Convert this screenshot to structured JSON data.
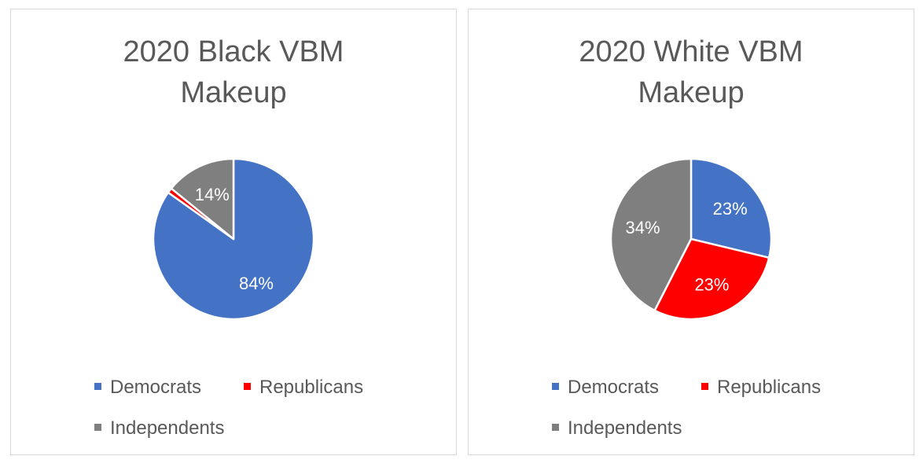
{
  "colors": {
    "democrats": "#4472c4",
    "republicans": "#ff0000",
    "independents": "#7f7f7f"
  },
  "legend": {
    "democrats": "Democrats",
    "republicans": "Republicans",
    "independents": "Independents"
  },
  "chart_data": [
    {
      "type": "pie",
      "title_line1": "2020 Black VBM",
      "title_line2": "Makeup",
      "categories": [
        "Democrats",
        "Republicans",
        "Independents"
      ],
      "values": [
        84,
        1,
        14
      ],
      "labels": [
        "84%",
        "",
        "14%"
      ],
      "legend_position": "bottom"
    },
    {
      "type": "pie",
      "title_line1": "2020 White VBM",
      "title_line2": "Makeup",
      "categories": [
        "Democrats",
        "Republicans",
        "Independents"
      ],
      "values": [
        23,
        23,
        34
      ],
      "labels": [
        "23%",
        "23%",
        "34%"
      ],
      "legend_position": "bottom"
    }
  ]
}
